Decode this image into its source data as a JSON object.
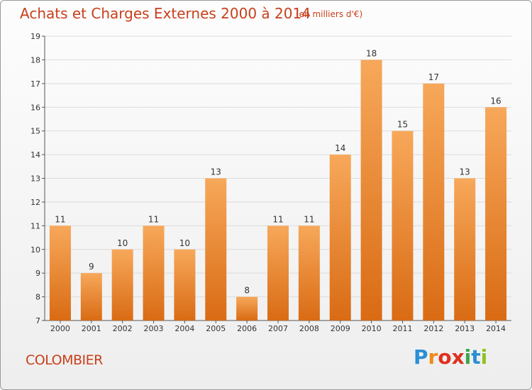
{
  "title": "Achats et Charges Externes 2000 à 2014",
  "subtitle": "(en milliers d'€)",
  "place": "COLOMBIER",
  "logo": {
    "letters": [
      "P",
      "r",
      "o",
      "x",
      "i",
      "t",
      "i"
    ]
  },
  "colors": {
    "accent": "#c8401c",
    "bar_light": "#f7a85a",
    "bar_dark": "#d96b14",
    "grid": "#dcdcdc"
  },
  "chart_data": {
    "type": "bar",
    "title": "Achats et Charges Externes 2000 à 2014",
    "subtitle": "(en milliers d'€)",
    "categories": [
      "2000",
      "2001",
      "2002",
      "2003",
      "2004",
      "2005",
      "2006",
      "2007",
      "2008",
      "2009",
      "2010",
      "2011",
      "2012",
      "2013",
      "2014"
    ],
    "values": [
      11,
      9,
      10,
      11,
      10,
      13,
      8,
      11,
      11,
      14,
      18,
      15,
      17,
      13,
      16
    ],
    "ylim": [
      7,
      19
    ],
    "yticks": [
      7,
      8,
      9,
      10,
      11,
      12,
      13,
      14,
      15,
      16,
      17,
      18,
      19
    ],
    "xlabel": "",
    "ylabel": "",
    "grid": true,
    "data_labels": true
  }
}
